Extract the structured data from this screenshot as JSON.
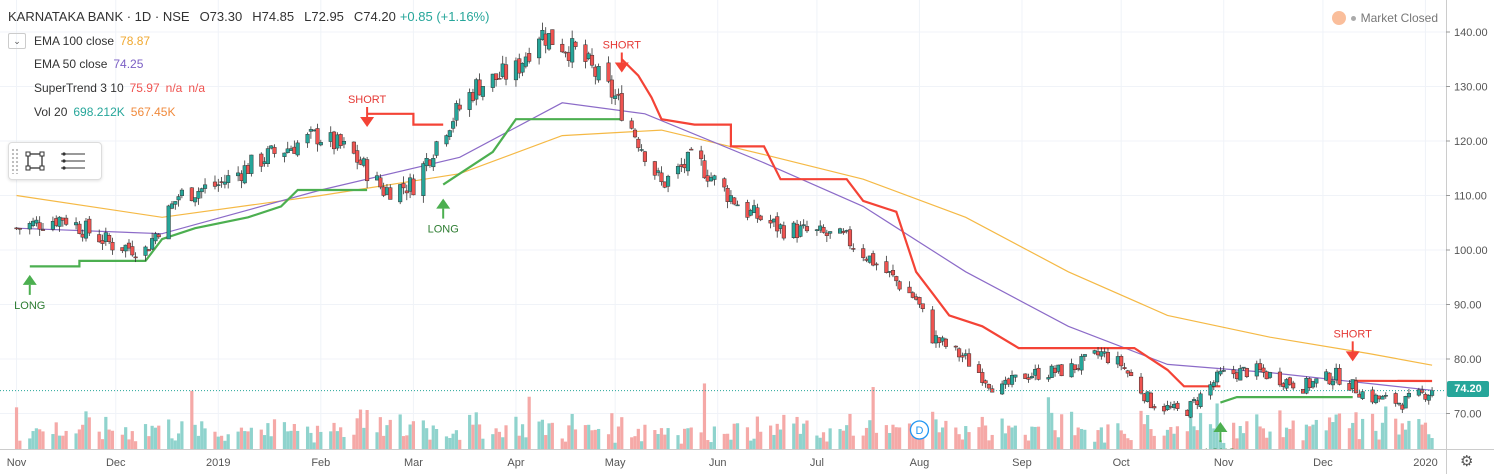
{
  "header": {
    "symbol": "KARNATAKA BANK · 1D · NSE",
    "open": "O73.30",
    "high": "H74.85",
    "low": "L72.95",
    "close": "C74.20",
    "change": "+0.85 (+1.16%)"
  },
  "market_status": "Market Closed",
  "indicators": [
    {
      "label": "EMA 100 close",
      "values": [
        "78.87"
      ],
      "colors": [
        "#f0a830"
      ]
    },
    {
      "label": "EMA 50 close",
      "values": [
        "74.25"
      ],
      "colors": [
        "#7b5fc4"
      ]
    },
    {
      "label": "SuperTrend 3 10",
      "values": [
        "75.97",
        "n/a",
        "n/a"
      ],
      "colors": [
        "#ef5350",
        "#ef5350",
        "#ef5350"
      ]
    },
    {
      "label": "Vol 20",
      "values": [
        "698.212K",
        "567.45K"
      ],
      "colors": [
        "#26a69a",
        "#f08a3c"
      ]
    }
  ],
  "last_price_label": "74.20",
  "event_marker": "D",
  "colors": {
    "up": "#26a69a",
    "down": "#ef5350",
    "ema100": "#f5b945",
    "ema50": "#8c6bc8",
    "st_up": "#4caf50",
    "st_down": "#f44336"
  },
  "chart_data": {
    "type": "candlestick",
    "y_ticks": [
      "140.00",
      "130.00",
      "120.00",
      "110.00",
      "100.00",
      "90.00",
      "80.00",
      "70.00"
    ],
    "ylim": [
      66,
      143
    ],
    "x_ticks": [
      "Nov",
      "Dec",
      "2019",
      "Feb",
      "Mar",
      "Apr",
      "May",
      "Jun",
      "Jul",
      "Aug",
      "Sep",
      "Oct",
      "Nov",
      "Dec",
      "2020"
    ],
    "close_path": [
      [
        "2018-11-01",
        104
      ],
      [
        "2018-11-15",
        106
      ],
      [
        "2018-11-30",
        101
      ],
      [
        "2018-12-10",
        100
      ],
      [
        "2018-12-20",
        110
      ],
      [
        "2019-01-01",
        112
      ],
      [
        "2019-01-15",
        117
      ],
      [
        "2019-01-31",
        121
      ],
      [
        "2019-02-10",
        118
      ],
      [
        "2019-02-20",
        111
      ],
      [
        "2019-03-01",
        112
      ],
      [
        "2019-03-10",
        122
      ],
      [
        "2019-03-20",
        130
      ],
      [
        "2019-04-01",
        133
      ],
      [
        "2019-04-08",
        140
      ],
      [
        "2019-04-20",
        136
      ],
      [
        "2019-05-01",
        128
      ],
      [
        "2019-05-10",
        118
      ],
      [
        "2019-05-15",
        112
      ],
      [
        "2019-05-25",
        117
      ],
      [
        "2019-06-01",
        112
      ],
      [
        "2019-06-10",
        107
      ],
      [
        "2019-06-20",
        104
      ],
      [
        "2019-07-01",
        103
      ],
      [
        "2019-07-10",
        102
      ],
      [
        "2019-07-20",
        97
      ],
      [
        "2019-07-31",
        91
      ],
      [
        "2019-08-05",
        84
      ],
      [
        "2019-08-15",
        80
      ],
      [
        "2019-08-25",
        74
      ],
      [
        "2019-09-01",
        77
      ],
      [
        "2019-09-15",
        78
      ],
      [
        "2019-09-25",
        81
      ],
      [
        "2019-10-01",
        79
      ],
      [
        "2019-10-10",
        72
      ],
      [
        "2019-10-20",
        70
      ],
      [
        "2019-10-31",
        77
      ],
      [
        "2019-11-10",
        78
      ],
      [
        "2019-11-25",
        75
      ],
      [
        "2019-12-05",
        77
      ],
      [
        "2019-12-15",
        73
      ],
      [
        "2019-12-25",
        72
      ],
      [
        "2020-01-03",
        74.2
      ]
    ],
    "ema100": [
      [
        "2018-11-01",
        110
      ],
      [
        "2018-12-15",
        106
      ],
      [
        "2019-02-01",
        110
      ],
      [
        "2019-03-15",
        114
      ],
      [
        "2019-04-15",
        121
      ],
      [
        "2019-05-15",
        122
      ],
      [
        "2019-06-15",
        117.5
      ],
      [
        "2019-07-15",
        113
      ],
      [
        "2019-08-15",
        106
      ],
      [
        "2019-09-15",
        96
      ],
      [
        "2019-10-15",
        88
      ],
      [
        "2019-11-15",
        84
      ],
      [
        "2019-12-15",
        81
      ],
      [
        "2020-01-03",
        78.87
      ]
    ],
    "ema50": [
      [
        "2018-11-01",
        104
      ],
      [
        "2018-12-15",
        103
      ],
      [
        "2019-02-01",
        111
      ],
      [
        "2019-03-15",
        117
      ],
      [
        "2019-04-15",
        127
      ],
      [
        "2019-05-10",
        125
      ],
      [
        "2019-06-15",
        116
      ],
      [
        "2019-07-15",
        108
      ],
      [
        "2019-08-15",
        96
      ],
      [
        "2019-09-15",
        86
      ],
      [
        "2019-10-15",
        79
      ],
      [
        "2019-11-15",
        77.5
      ],
      [
        "2019-12-15",
        75.5
      ],
      [
        "2020-01-03",
        74.25
      ]
    ],
    "supertrend": [
      {
        "trend": "up",
        "points": [
          [
            "2018-11-05",
            97
          ],
          [
            "2018-11-20",
            97
          ],
          [
            "2018-11-20",
            98
          ],
          [
            "2018-12-10",
            98
          ],
          [
            "2018-12-15",
            102
          ],
          [
            "2018-12-25",
            104
          ],
          [
            "2019-01-10",
            106
          ],
          [
            "2019-01-20",
            108
          ],
          [
            "2019-01-25",
            111
          ],
          [
            "2019-02-15",
            111
          ]
        ]
      },
      {
        "trend": "down",
        "points": [
          [
            "2019-02-15",
            125
          ],
          [
            "2019-03-01",
            125
          ],
          [
            "2019-03-01",
            123
          ],
          [
            "2019-03-10",
            123
          ]
        ]
      },
      {
        "trend": "up",
        "points": [
          [
            "2019-03-10",
            112
          ],
          [
            "2019-03-15",
            114
          ],
          [
            "2019-03-25",
            118
          ],
          [
            "2019-04-01",
            124
          ],
          [
            "2019-05-03",
            124
          ]
        ]
      },
      {
        "trend": "down",
        "points": [
          [
            "2019-05-03",
            135
          ],
          [
            "2019-05-08",
            132
          ],
          [
            "2019-05-12",
            128
          ],
          [
            "2019-05-15",
            124
          ],
          [
            "2019-05-25",
            123
          ],
          [
            "2019-06-05",
            123
          ],
          [
            "2019-06-05",
            119
          ],
          [
            "2019-06-15",
            119
          ],
          [
            "2019-06-20",
            113
          ],
          [
            "2019-07-10",
            113
          ],
          [
            "2019-07-15",
            109
          ],
          [
            "2019-07-25",
            107
          ],
          [
            "2019-07-31",
            96
          ],
          [
            "2019-08-05",
            92
          ],
          [
            "2019-08-10",
            88
          ],
          [
            "2019-08-20",
            86
          ],
          [
            "2019-08-31",
            82
          ],
          [
            "2019-09-20",
            82
          ],
          [
            "2019-10-05",
            82
          ],
          [
            "2019-10-15",
            78
          ],
          [
            "2019-10-20",
            75
          ],
          [
            "2019-10-31",
            75
          ]
        ]
      },
      {
        "trend": "up",
        "points": [
          [
            "2019-10-31",
            72
          ],
          [
            "2019-11-05",
            73
          ],
          [
            "2019-11-15",
            73
          ],
          [
            "2019-12-10",
            73
          ]
        ]
      },
      {
        "trend": "down",
        "points": [
          [
            "2019-12-10",
            76
          ],
          [
            "2020-01-03",
            75.97
          ]
        ]
      }
    ],
    "signals": [
      {
        "type": "LONG",
        "date": "2018-11-05",
        "price": 98
      },
      {
        "type": "SHORT",
        "date": "2019-02-15",
        "price": 120
      },
      {
        "type": "LONG",
        "date": "2019-03-10",
        "price": 112
      },
      {
        "type": "SHORT",
        "date": "2019-05-03",
        "price": 130
      },
      {
        "type": "LONG",
        "date": "2019-10-31",
        "price": 71
      },
      {
        "type": "SHORT",
        "date": "2019-12-10",
        "price": 77
      }
    ]
  }
}
